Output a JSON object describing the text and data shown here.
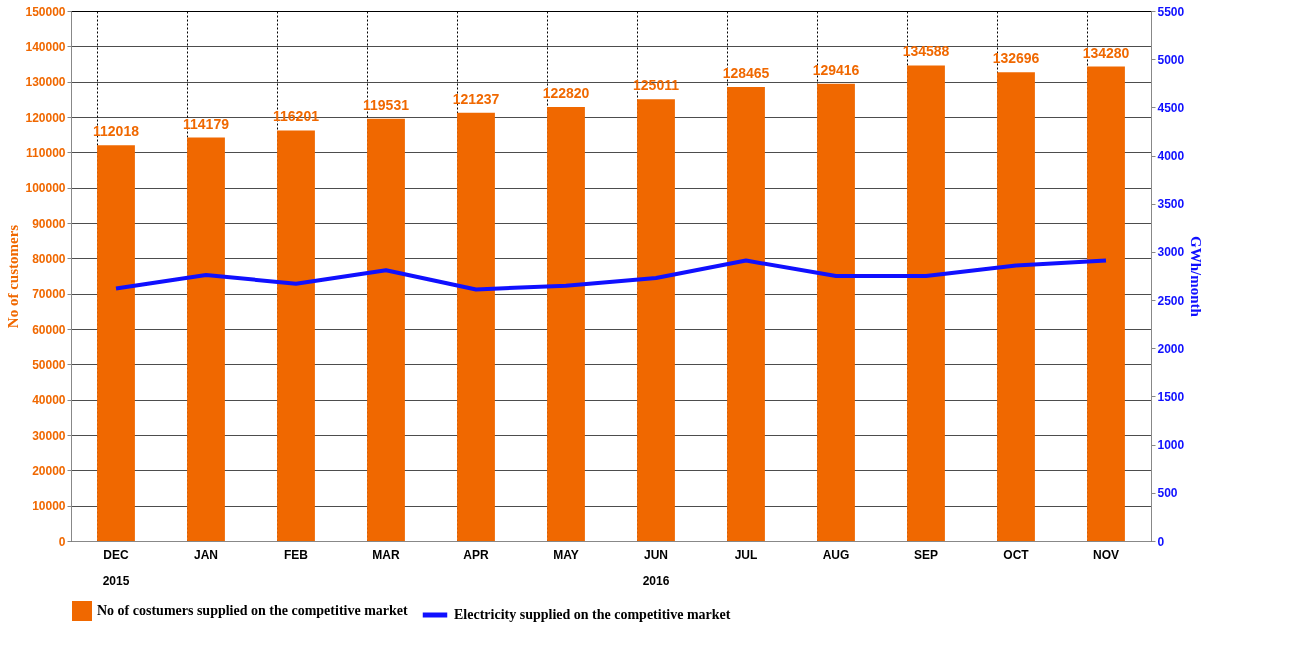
{
  "chart_data": {
    "type": "bar",
    "categories": [
      "DEC",
      "JAN",
      "FEB",
      "MAR",
      "APR",
      "MAY",
      "JUN",
      "JUL",
      "AUG",
      "SEP",
      "OCT",
      "NOV"
    ],
    "series": [
      {
        "name": "No of  costumers supplied on the competitive market",
        "color": "#f06800",
        "values": [
          112018,
          114179,
          116201,
          119531,
          121237,
          122820,
          125011,
          128465,
          129416,
          134588,
          132696,
          134280
        ],
        "value_labels": [
          "112018",
          "114179",
          "116201",
          "119531",
          "121237",
          "122820",
          "125011",
          "128465",
          "129416",
          "134588",
          "132696",
          "134280"
        ]
      },
      {
        "name": "Electricity supplied on the competitive market",
        "color": "#1010ff",
        "type": "line",
        "axis": "y2",
        "values": [
          2620,
          2760,
          2670,
          2810,
          2610,
          2650,
          2730,
          2910,
          2750,
          2750,
          2860,
          2910
        ]
      }
    ],
    "ylabel": "No of customers",
    "y2label": "GWh/month",
    "ylim": [
      0,
      150000
    ],
    "yticks": [
      0,
      10000,
      20000,
      30000,
      40000,
      50000,
      60000,
      70000,
      80000,
      90000,
      100000,
      110000,
      120000,
      130000,
      140000,
      150000
    ],
    "y2lim": [
      0,
      5500
    ],
    "y2ticks": [
      0,
      500,
      1000,
      1500,
      2000,
      2500,
      3000,
      3500,
      4000,
      4500,
      5000,
      5500
    ],
    "annotations": [
      "2015",
      "2016"
    ],
    "grid": true,
    "legend": "bottom"
  }
}
